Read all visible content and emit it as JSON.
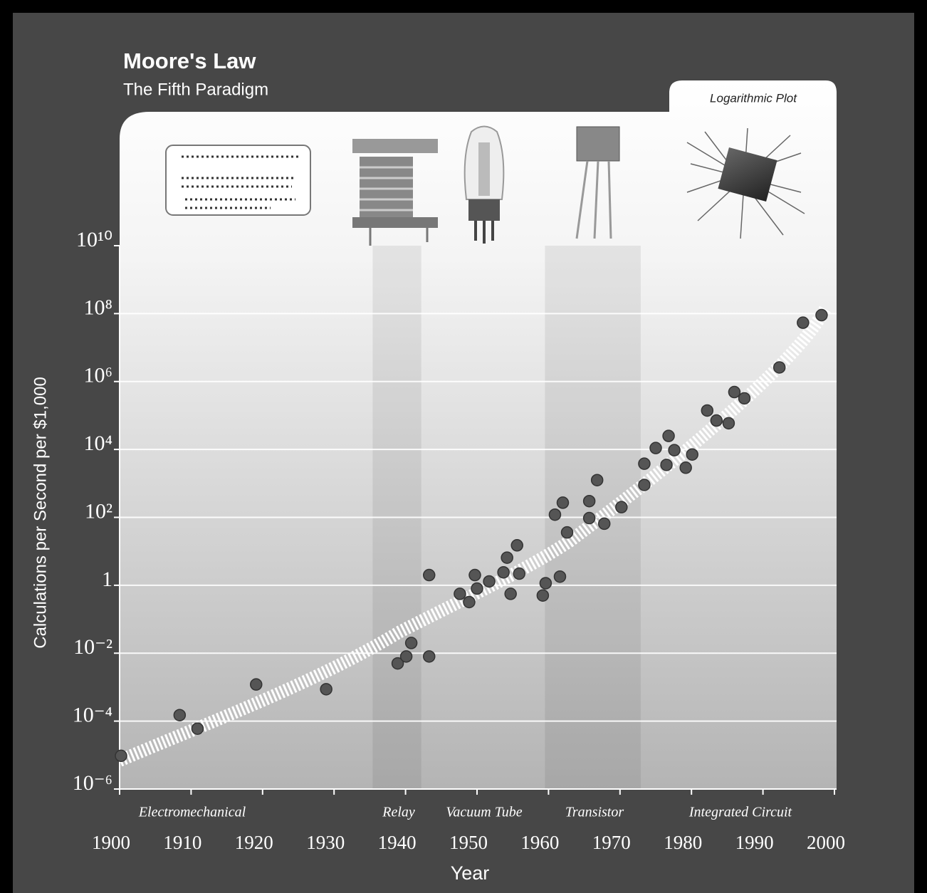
{
  "chart_data": {
    "type": "scatter",
    "title": "Moore's Law",
    "subtitle": "The Fifth Paradigm",
    "annotation": "Logarithmic Plot",
    "xlabel": "Year",
    "ylabel": "Calculations per Second per $1,000",
    "log_y": true,
    "grid": true,
    "color": "#555555",
    "xlim": [
      1900,
      2000
    ],
    "xticks": [
      1900,
      1910,
      1920,
      1930,
      1940,
      1950,
      1960,
      1970,
      1980,
      1990,
      2000
    ],
    "ylim": [
      1e-06,
      10000000000
    ],
    "yticks": [
      {
        "value": 1e-06,
        "label": "10⁻⁶"
      },
      {
        "value": 0.0001,
        "label": "10⁻⁴"
      },
      {
        "value": 0.01,
        "label": "10⁻²"
      },
      1,
      {
        "value": 100,
        "label": "10²"
      },
      {
        "value": 10000,
        "label": "10⁴"
      },
      {
        "value": 1000000,
        "label": "10⁶"
      },
      {
        "value": 100000000,
        "label": "10⁸"
      },
      {
        "value": 10000000000,
        "label": "10¹⁰"
      }
    ],
    "paradigms": [
      "Electromechanical",
      "Relay",
      "Vacuum Tube",
      "Transistor",
      "Integrated Circuit"
    ],
    "shaded_ranges": [
      {
        "start": 1935.4,
        "end": 1942.2
      },
      {
        "start": 1959.5,
        "end": 1972.9
      }
    ],
    "x": [
      1900.2,
      1908.4,
      1910.9,
      1919.1,
      1928.9,
      1938.9,
      1940.1,
      1940.8,
      1943.3,
      1943.3,
      1947.6,
      1948.9,
      1949.7,
      1950.0,
      1951.7,
      1953.7,
      1954.2,
      1954.7,
      1955.6,
      1955.9,
      1959.2,
      1959.6,
      1960.9,
      1961.6,
      1962.0,
      1962.6,
      1965.7,
      1965.7,
      1966.8,
      1967.8,
      1970.2,
      1973.4,
      1973.4,
      1975.0,
      1976.5,
      1976.8,
      1977.6,
      1979.2,
      1980.1,
      1982.2,
      1983.5,
      1985.2,
      1986.0,
      1987.4,
      1992.3,
      1995.6,
      1998.2
    ],
    "values": [
      9.5e-06,
      0.00015,
      6e-05,
      0.0012,
      0.00087,
      0.005,
      0.008,
      0.02,
      2,
      0.008,
      0.56,
      0.32,
      2,
      0.8,
      1.3,
      2.4,
      6.5,
      0.56,
      15,
      2.2,
      0.5,
      1.15,
      120,
      1.8,
      270,
      36,
      300,
      95,
      1250,
      65,
      200,
      900,
      3800,
      11000,
      3500,
      25000,
      9500,
      2900,
      7100,
      140000,
      71000,
      59000,
      490000,
      320000,
      2600000,
      54000000,
      90000000
    ]
  }
}
